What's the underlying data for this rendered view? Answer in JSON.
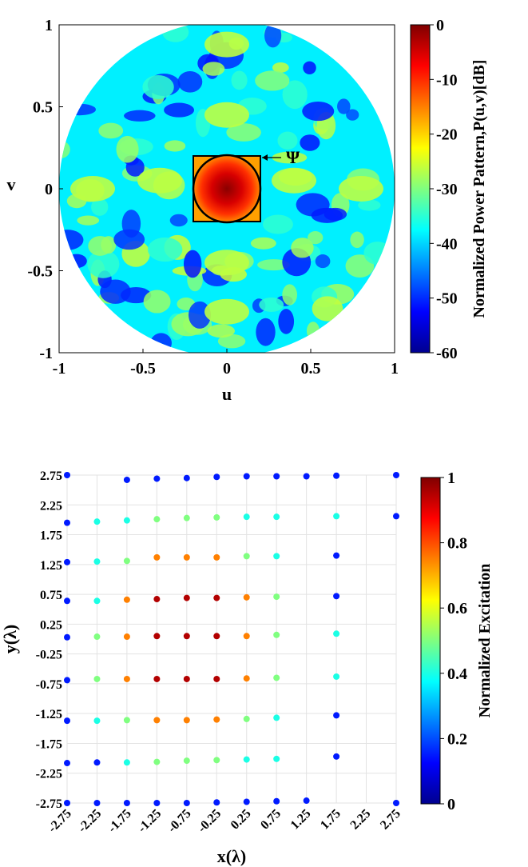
{
  "chart_data": [
    {
      "type": "heatmap",
      "description_kind": "power-pattern",
      "xlabel": "u",
      "ylabel": "v",
      "xlim": [
        -1,
        1
      ],
      "ylim": [
        -1,
        1
      ],
      "xticks": [
        "-1",
        "-0.5",
        "0",
        "0.5",
        "1"
      ],
      "yticks": [
        "1",
        "0.5",
        "0",
        "-0.5",
        "-1"
      ],
      "colorbar": {
        "label": "Normalized Power Pattern,P(u,v)[dB]",
        "range": [
          -60,
          0
        ],
        "ticks": [
          "0",
          "-10",
          "-20",
          "-30",
          "-40",
          "-50",
          "-60"
        ]
      },
      "annotation": "Ψ",
      "region": {
        "square_half_width": 0.2,
        "circle_radius": 0.2
      }
    },
    {
      "type": "scatter",
      "xlabel": "x(λ)",
      "ylabel": "y(λ)",
      "xlim": [
        -2.75,
        2.75
      ],
      "ylim": [
        -2.75,
        2.75
      ],
      "ticks": [
        "-2.75",
        "-2.25",
        "-1.75",
        "-1.25",
        "-0.75",
        "-0.25",
        "0.25",
        "0.75",
        "1.25",
        "1.75",
        "2.25",
        "2.75"
      ],
      "colorbar": {
        "label": "Normalized Excitation",
        "range": [
          0,
          1
        ],
        "ticks": [
          "1",
          "0.8",
          "0.6",
          "0.4",
          "0.2",
          "0"
        ]
      },
      "points": [
        {
          "x": -2.75,
          "y": 2.75,
          "c": 0.15
        },
        {
          "x": -1.75,
          "y": 2.67,
          "c": 0.15
        },
        {
          "x": -1.25,
          "y": 2.69,
          "c": 0.15
        },
        {
          "x": -0.75,
          "y": 2.7,
          "c": 0.15
        },
        {
          "x": -0.25,
          "y": 2.72,
          "c": 0.15
        },
        {
          "x": 0.25,
          "y": 2.73,
          "c": 0.15
        },
        {
          "x": 0.75,
          "y": 2.73,
          "c": 0.15
        },
        {
          "x": 1.25,
          "y": 2.73,
          "c": 0.15
        },
        {
          "x": 1.75,
          "y": 2.74,
          "c": 0.15
        },
        {
          "x": 2.75,
          "y": 2.75,
          "c": 0.15
        },
        {
          "x": -2.75,
          "y": 1.95,
          "c": 0.15
        },
        {
          "x": -2.25,
          "y": 1.97,
          "c": 0.4
        },
        {
          "x": -1.75,
          "y": 1.99,
          "c": 0.4
        },
        {
          "x": -1.25,
          "y": 2.01,
          "c": 0.5
        },
        {
          "x": -0.75,
          "y": 2.03,
          "c": 0.5
        },
        {
          "x": -0.25,
          "y": 2.04,
          "c": 0.5
        },
        {
          "x": 0.25,
          "y": 2.05,
          "c": 0.4
        },
        {
          "x": 0.75,
          "y": 2.05,
          "c": 0.4
        },
        {
          "x": 1.75,
          "y": 2.06,
          "c": 0.4
        },
        {
          "x": 2.75,
          "y": 2.06,
          "c": 0.15
        },
        {
          "x": -2.75,
          "y": 1.29,
          "c": 0.15
        },
        {
          "x": -2.25,
          "y": 1.3,
          "c": 0.4
        },
        {
          "x": -1.75,
          "y": 1.31,
          "c": 0.5
        },
        {
          "x": -1.25,
          "y": 1.37,
          "c": 0.75
        },
        {
          "x": -0.75,
          "y": 1.37,
          "c": 0.75
        },
        {
          "x": -0.25,
          "y": 1.37,
          "c": 0.75
        },
        {
          "x": 0.25,
          "y": 1.39,
          "c": 0.5
        },
        {
          "x": 0.75,
          "y": 1.39,
          "c": 0.4
        },
        {
          "x": 1.75,
          "y": 1.4,
          "c": 0.15
        },
        {
          "x": -2.75,
          "y": 0.64,
          "c": 0.15
        },
        {
          "x": -2.25,
          "y": 0.64,
          "c": 0.4
        },
        {
          "x": -1.75,
          "y": 0.66,
          "c": 0.75
        },
        {
          "x": -1.25,
          "y": 0.67,
          "c": 0.95
        },
        {
          "x": -0.75,
          "y": 0.69,
          "c": 0.95
        },
        {
          "x": -0.25,
          "y": 0.69,
          "c": 0.95
        },
        {
          "x": 0.25,
          "y": 0.7,
          "c": 0.75
        },
        {
          "x": 0.75,
          "y": 0.71,
          "c": 0.5
        },
        {
          "x": 1.75,
          "y": 0.72,
          "c": 0.15
        },
        {
          "x": -2.75,
          "y": 0.03,
          "c": 0.15
        },
        {
          "x": -2.25,
          "y": 0.04,
          "c": 0.5
        },
        {
          "x": -1.75,
          "y": 0.04,
          "c": 0.75
        },
        {
          "x": -1.25,
          "y": 0.05,
          "c": 0.95
        },
        {
          "x": -0.75,
          "y": 0.05,
          "c": 0.95
        },
        {
          "x": -0.25,
          "y": 0.05,
          "c": 0.95
        },
        {
          "x": 0.25,
          "y": 0.05,
          "c": 0.75
        },
        {
          "x": 0.75,
          "y": 0.07,
          "c": 0.5
        },
        {
          "x": 1.75,
          "y": 0.09,
          "c": 0.4
        },
        {
          "x": -2.75,
          "y": -0.69,
          "c": 0.15
        },
        {
          "x": -2.25,
          "y": -0.67,
          "c": 0.5
        },
        {
          "x": -1.75,
          "y": -0.67,
          "c": 0.75
        },
        {
          "x": -1.25,
          "y": -0.67,
          "c": 0.95
        },
        {
          "x": -0.75,
          "y": -0.67,
          "c": 0.95
        },
        {
          "x": -0.25,
          "y": -0.67,
          "c": 0.95
        },
        {
          "x": 0.25,
          "y": -0.66,
          "c": 0.75
        },
        {
          "x": 0.75,
          "y": -0.65,
          "c": 0.5
        },
        {
          "x": 1.75,
          "y": -0.63,
          "c": 0.4
        },
        {
          "x": -2.75,
          "y": -1.37,
          "c": 0.15
        },
        {
          "x": -2.25,
          "y": -1.37,
          "c": 0.4
        },
        {
          "x": -1.75,
          "y": -1.36,
          "c": 0.5
        },
        {
          "x": -1.25,
          "y": -1.36,
          "c": 0.75
        },
        {
          "x": -0.75,
          "y": -1.36,
          "c": 0.75
        },
        {
          "x": -0.25,
          "y": -1.35,
          "c": 0.75
        },
        {
          "x": 0.25,
          "y": -1.34,
          "c": 0.5
        },
        {
          "x": 0.75,
          "y": -1.32,
          "c": 0.4
        },
        {
          "x": 1.75,
          "y": -1.28,
          "c": 0.15
        },
        {
          "x": -2.75,
          "y": -2.08,
          "c": 0.15
        },
        {
          "x": -2.25,
          "y": -2.07,
          "c": 0.15
        },
        {
          "x": -1.75,
          "y": -2.07,
          "c": 0.4
        },
        {
          "x": -1.25,
          "y": -2.06,
          "c": 0.5
        },
        {
          "x": -0.75,
          "y": -2.04,
          "c": 0.5
        },
        {
          "x": -0.25,
          "y": -2.03,
          "c": 0.5
        },
        {
          "x": 0.25,
          "y": -2.02,
          "c": 0.4
        },
        {
          "x": 0.75,
          "y": -2.01,
          "c": 0.4
        },
        {
          "x": 1.75,
          "y": -1.97,
          "c": 0.15
        },
        {
          "x": -2.75,
          "y": -2.75,
          "c": 0.15
        },
        {
          "x": -2.25,
          "y": -2.75,
          "c": 0.15
        },
        {
          "x": -1.75,
          "y": -2.75,
          "c": 0.15
        },
        {
          "x": -1.25,
          "y": -2.75,
          "c": 0.15
        },
        {
          "x": -0.75,
          "y": -2.75,
          "c": 0.15
        },
        {
          "x": -0.25,
          "y": -2.74,
          "c": 0.15
        },
        {
          "x": 0.25,
          "y": -2.73,
          "c": 0.15
        },
        {
          "x": 0.75,
          "y": -2.72,
          "c": 0.15
        },
        {
          "x": 1.25,
          "y": -2.71,
          "c": 0.15
        },
        {
          "x": 2.75,
          "y": -2.75,
          "c": 0.15
        }
      ]
    }
  ]
}
